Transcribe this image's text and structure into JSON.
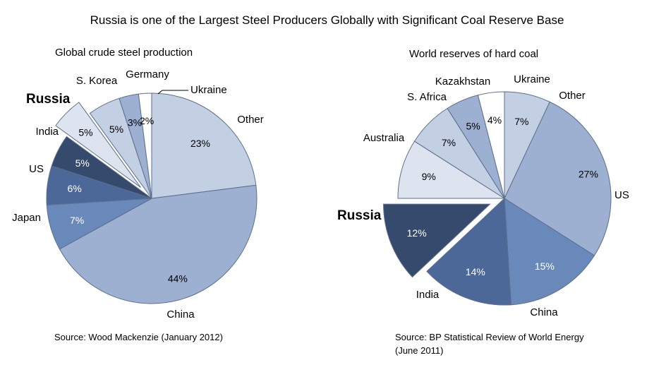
{
  "title": "Russia is one of the Largest Steel Producers Globally with Significant Coal Reserve Base",
  "chart_data": [
    {
      "type": "pie",
      "title": "Global crude steel production",
      "source": "Source:  Wood  Mackenzie  (January  2012)",
      "slices": [
        {
          "label": "Other",
          "value": 23,
          "pct_label": "23%",
          "color": "#c3cfe2"
        },
        {
          "label": "China",
          "value": 44,
          "pct_label": "44%",
          "color": "#9db0d1"
        },
        {
          "label": "Japan",
          "value": 7,
          "pct_label": "7%",
          "color": "#6a89bb"
        },
        {
          "label": "US",
          "value": 6,
          "pct_label": "6%",
          "color": "#4c6898"
        },
        {
          "label": "India",
          "value": 5,
          "pct_label": "5%",
          "color": "#354a6c"
        },
        {
          "label": "Russia",
          "value": 5,
          "pct_label": "5%",
          "color": "#dde4f0",
          "exploded": true
        },
        {
          "label": "S. Korea",
          "value": 5,
          "pct_label": "5%",
          "color": "#c3cfe2"
        },
        {
          "label": "Germany",
          "value": 3,
          "pct_label": "3%",
          "color": "#9db0d1"
        },
        {
          "label": "Ukraine",
          "value": 2,
          "pct_label": "2%",
          "color": "#ffffff"
        }
      ]
    },
    {
      "type": "pie",
      "title": "World reserves of hard coal",
      "source_lines": [
        "Source:  BP  Statistical  Review  of  World  Energy",
        "(June  2011)"
      ],
      "slices": [
        {
          "label": "Other",
          "value": 7,
          "pct_label": "7%",
          "color": "#c3cfe2"
        },
        {
          "label": "US",
          "value": 27,
          "pct_label": "27%",
          "color": "#9db0d1"
        },
        {
          "label": "China",
          "value": 15,
          "pct_label": "15%",
          "color": "#6a89bb"
        },
        {
          "label": "India",
          "value": 14,
          "pct_label": "14%",
          "color": "#4c6898"
        },
        {
          "label": "Russia",
          "value": 12,
          "pct_label": "12%",
          "color": "#354a6c",
          "exploded": true
        },
        {
          "label": "Australia",
          "value": 9,
          "pct_label": "9%",
          "color": "#dde4f0"
        },
        {
          "label": "S. Africa",
          "value": 7,
          "pct_label": "7%",
          "color": "#c3cfe2"
        },
        {
          "label": "Kazakhstan",
          "value": 5,
          "pct_label": "5%",
          "color": "#9db0d1"
        },
        {
          "label": "Ukraine",
          "value": 4,
          "pct_label": "4%",
          "color": "#ffffff"
        }
      ]
    }
  ]
}
